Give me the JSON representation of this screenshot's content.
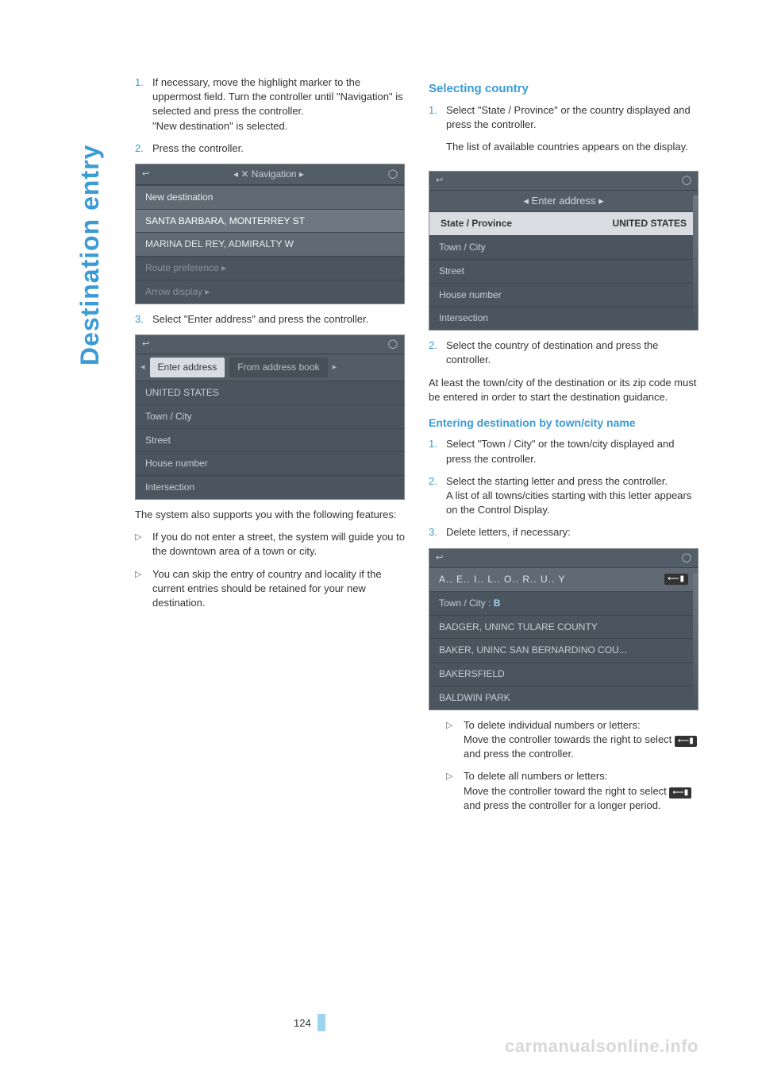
{
  "side_title": "Destination entry",
  "page_number": "124",
  "watermark": "carmanualsonline.info",
  "colors": {
    "accent": "#3b9bd4",
    "shot_bg": "#4a5560",
    "shot_row_light": "#5f6a74",
    "shot_row_hl": "#6d7882",
    "shot_text": "#c8cdd2",
    "page_bar": "#9fd4f0"
  },
  "left": {
    "step1": "If necessary, move the highlight marker to the uppermost field. Turn the controller until \"Navigation\" is selected and press the controller.",
    "step1b": "\"New destination\" is selected.",
    "step2": "Press the controller.",
    "shot1": {
      "title": "Navigation",
      "rows": [
        "New destination",
        "SANTA BARBARA, MONTERREY ST",
        "MARINA DEL REY, ADMIRALTY W"
      ],
      "footer": [
        "Route preference ▸",
        "Arrow display ▸"
      ]
    },
    "step3": "Select \"Enter address\" and press the controller.",
    "shot2": {
      "tabs": [
        "Enter address",
        "From address book"
      ],
      "rows": [
        "UNITED STATES",
        "Town / City",
        "Street",
        "House number",
        "Intersection"
      ]
    },
    "para1": "The system also supports you with the following features:",
    "bullet1": "If you do not enter a street, the system will guide you to the downtown area of a town or city.",
    "bullet2": "You can skip the entry of country and locality if the current entries should be retained for your new destination."
  },
  "right": {
    "h2": "Selecting country",
    "step1": "Select \"State / Province\" or the country displayed and press the controller.",
    "step1b": "The list of available countries appears on the display.",
    "shot1": {
      "title": "Enter address",
      "header": {
        "l": "State / Province",
        "r": "UNITED STATES"
      },
      "rows": [
        "Town / City",
        "Street",
        "House number",
        "Intersection"
      ]
    },
    "step2": "Select the country of destination and press the controller.",
    "para1": "At least the town/city of the destination or its zip code must be entered in order to start the destination guidance.",
    "h3": "Entering destination by town/city name",
    "tstep1": "Select \"Town / City\" or the town/city displayed and press the controller.",
    "tstep2": "Select the starting letter and press the controller.",
    "tstep2b": "A list of all towns/cities starting with this letter appears on the Control Display.",
    "tstep3": "Delete letters, if necessary:",
    "shot2": {
      "letters": "A..  E..  I..  L..  O..  R..  U..  Y",
      "input_label": "Town / City :",
      "input_value": "B",
      "rows": [
        "BADGER, UNINC TULARE COUNTY",
        "BAKER, UNINC SAN BERNARDINO COU...",
        "BAKERSFIELD",
        "BALDWIN PARK"
      ]
    },
    "del1a": "To delete individual numbers or letters:",
    "del1b": "Move the controller towards the right to select",
    "del1c": "and press the controller.",
    "del2a": "To delete all numbers or letters:",
    "del2b": "Move the controller toward the right to select",
    "del2c": "and press the controller for a longer period.",
    "backspace_glyph": "⟵▮"
  }
}
